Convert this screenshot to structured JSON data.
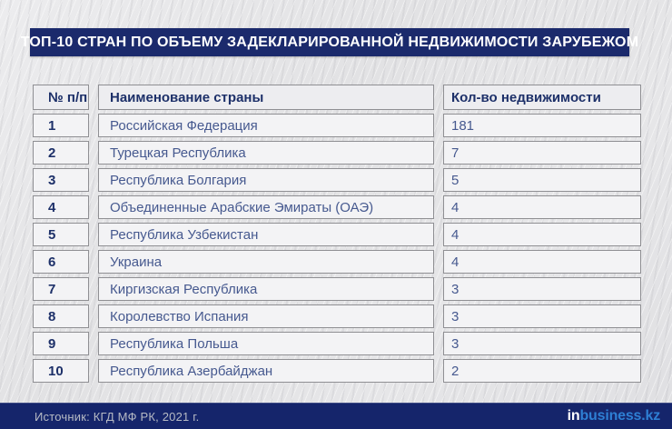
{
  "title": "ТОП-10 СТРАН ПО ОБЪЕМУ ЗАДЕКЛАРИРОВАННОЙ НЕДВИЖИМОСТИ ЗАРУБЕЖОМ",
  "table": {
    "columns": [
      "№ п/п",
      "Наименование страны",
      "Кол-во недвижимости"
    ],
    "rows": [
      {
        "num": "1",
        "country": "Российская Федерация",
        "count": "181"
      },
      {
        "num": "2",
        "country": "Турецкая Республика",
        "count": "7"
      },
      {
        "num": "3",
        "country": "Республика Болгария",
        "count": "5"
      },
      {
        "num": "4",
        "country": "Объединенные Арабские Эмираты (ОАЭ)",
        "count": "4"
      },
      {
        "num": "5",
        "country": "Республика Узбекистан",
        "count": "4"
      },
      {
        "num": "6",
        "country": "Украина",
        "count": "4"
      },
      {
        "num": "7",
        "country": "Киргизская Республика",
        "count": "3"
      },
      {
        "num": "8",
        "country": "Королевство Испания",
        "count": "3"
      },
      {
        "num": "9",
        "country": "Республика Польша",
        "count": "3"
      },
      {
        "num": "10",
        "country": "Республика Азербайджан",
        "count": "2"
      }
    ]
  },
  "footer": {
    "source": "Источник: КГД МФ РК, 2021 г.",
    "logo_prefix": "in",
    "logo_suffix": "business.kz"
  },
  "colors": {
    "banner_navy": "#1b2a6c",
    "footer_navy": "#15256b",
    "header_text_navy": "#1d3069",
    "body_text_blue": "#46598f",
    "logo_blue": "#2e7fd4",
    "cell_background": "#f3f3f5",
    "cell_border": "#8f8f93",
    "page_background": "#e3e3e5"
  },
  "chart_data": {
    "type": "table",
    "title": "ТОП-10 СТРАН ПО ОБЪЕМУ ЗАДЕКЛАРИРОВАННОЙ НЕДВИЖИМОСТИ ЗАРУБЕЖОМ",
    "columns": [
      "№ п/п",
      "Наименование страны",
      "Кол-во недвижимости"
    ],
    "categories": [
      "Российская Федерация",
      "Турецкая Республика",
      "Республика Болгария",
      "Объединенные Арабские Эмираты (ОАЭ)",
      "Республика Узбекистан",
      "Украина",
      "Киргизская Республика",
      "Королевство Испания",
      "Республика Польша",
      "Республика Азербайджан"
    ],
    "values": [
      181,
      7,
      5,
      4,
      4,
      4,
      3,
      3,
      3,
      2
    ],
    "source": "Источник: КГД МФ РК, 2021 г."
  }
}
